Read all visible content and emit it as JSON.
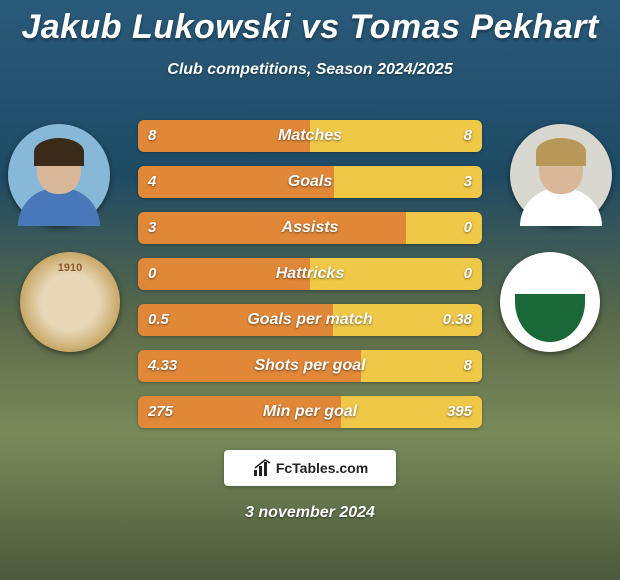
{
  "title": "Jakub Lukowski vs Tomas Pekhart",
  "subtitle": "Club competitions, Season 2024/2025",
  "footer_date": "3 november 2024",
  "site_name": "FcTables.com",
  "colors": {
    "left_fill": "#e08838",
    "right_fill": "#f0c848",
    "avatar_left_bg": "#88b8d8",
    "avatar_right_bg": "#d8d8d0",
    "avatar_left_hair": "#3a2a1a",
    "avatar_right_hair": "#b89858",
    "avatar_left_shirt": "#4878b8",
    "avatar_right_shirt": "#ffffff",
    "crest_right_top": "#ffffff",
    "crest_right_bottom": "#1a6838",
    "crest_left_year": "1910"
  },
  "stats": [
    {
      "label": "Matches",
      "left_val": "8",
      "right_val": "8",
      "left_pct": 50,
      "right_pct": 50
    },
    {
      "label": "Goals",
      "left_val": "4",
      "right_val": "3",
      "left_pct": 57.1,
      "right_pct": 42.9
    },
    {
      "label": "Assists",
      "left_val": "3",
      "right_val": "0",
      "left_pct": 78,
      "right_pct": 22
    },
    {
      "label": "Hattricks",
      "left_val": "0",
      "right_val": "0",
      "left_pct": 50,
      "right_pct": 50
    },
    {
      "label": "Goals per match",
      "left_val": "0.5",
      "right_val": "0.38",
      "left_pct": 56.8,
      "right_pct": 43.2
    },
    {
      "label": "Shots per goal",
      "left_val": "4.33",
      "right_val": "8",
      "left_pct": 64.9,
      "right_pct": 35.1
    },
    {
      "label": "Min per goal",
      "left_val": "275",
      "right_val": "395",
      "left_pct": 59,
      "right_pct": 41
    }
  ],
  "bar": {
    "height": 32,
    "gap": 14,
    "radius": 6,
    "label_fontsize": 16,
    "value_fontsize": 15
  }
}
